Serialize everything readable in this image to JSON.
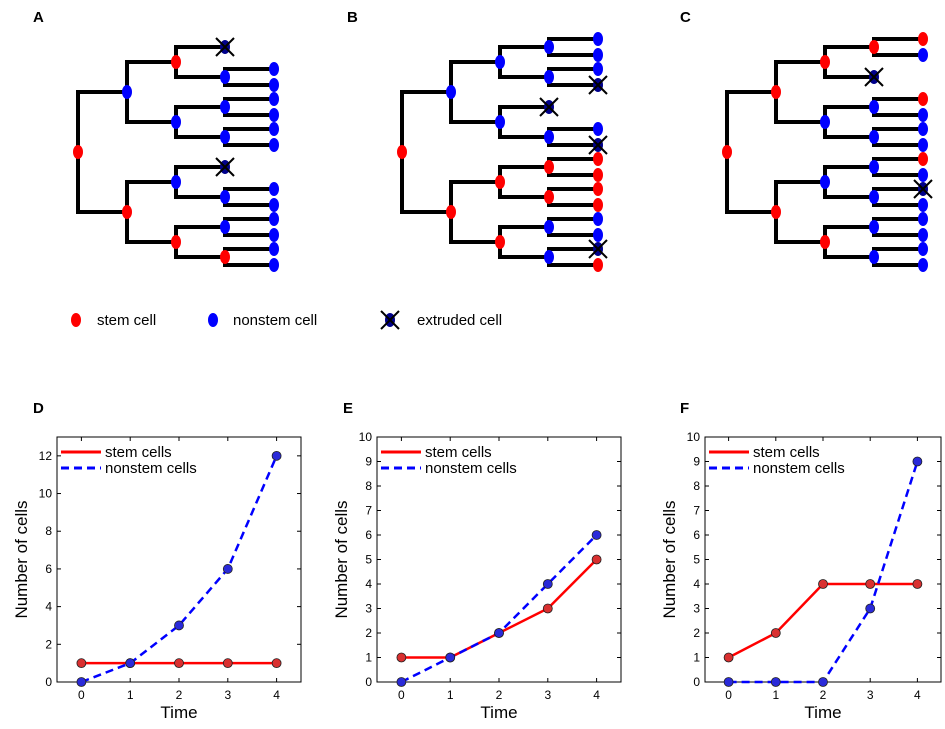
{
  "panel_labels": [
    "A",
    "B",
    "C",
    "D",
    "E",
    "F"
  ],
  "legend": {
    "stem": "stem cell",
    "nonstem": "nonstem cell",
    "extruded": "extruded cell"
  },
  "colors": {
    "stem": "#ff0000",
    "nonstem": "#0000ff",
    "extruded": "#00008b",
    "line": "#000000"
  },
  "trees": [
    {
      "root": "S",
      "l1": [
        "N",
        "S"
      ],
      "l2": [
        "S",
        "N",
        "N",
        "S"
      ],
      "l3": [
        "X",
        "N",
        "N",
        "N",
        "X",
        "N",
        "N",
        "S"
      ],
      "leaves": [
        "N",
        "N",
        "N",
        "N",
        "N",
        "N",
        "N",
        "N",
        "N",
        "N",
        "N",
        "N",
        "N",
        "S"
      ]
    },
    {
      "root": "S",
      "l1": [
        "N",
        "S"
      ],
      "l2": [
        "N",
        "N",
        "S",
        "S"
      ],
      "l3": [
        "N",
        "N",
        "X",
        "N",
        "S",
        "S",
        "N",
        "N"
      ],
      "leaves": [
        "N",
        "N",
        "N",
        "X",
        "N",
        "X",
        "S",
        "S",
        "S",
        "S",
        "N",
        "N",
        "X",
        "S"
      ]
    },
    {
      "root": "S",
      "l1": [
        "S",
        "S"
      ],
      "l2": [
        "S",
        "N",
        "N",
        "S"
      ],
      "l3": [
        "S",
        "X",
        "N",
        "N",
        "N",
        "N",
        "N",
        "N"
      ],
      "leaves": [
        "S",
        "N",
        "S",
        "N",
        "N",
        "N",
        "S",
        "N",
        "X",
        "N",
        "N",
        "N",
        "N",
        "N"
      ]
    }
  ],
  "charts_common": {
    "xlabel": "Time",
    "ylabel": "Number of cells",
    "legend_stem": "stem cells",
    "legend_nonstem": "nonstem cells"
  },
  "chart_data": [
    {
      "type": "line",
      "panel": "D",
      "x": [
        0,
        1,
        2,
        3,
        4
      ],
      "xlim": [
        -0.5,
        4.5
      ],
      "ylim": [
        0,
        13
      ],
      "yticks": [
        0,
        2,
        4,
        6,
        8,
        10,
        12
      ],
      "xticks": [
        0,
        1,
        2,
        3,
        4
      ],
      "legend_placement": "top-left",
      "series": [
        {
          "name": "stem cells",
          "values": [
            1,
            1,
            1,
            1,
            1
          ],
          "color": "#ff0000",
          "dash": "solid"
        },
        {
          "name": "nonstem cells",
          "values": [
            0,
            1,
            3,
            6,
            12
          ],
          "color": "#0000ff",
          "dash": "dashed"
        }
      ]
    },
    {
      "type": "line",
      "panel": "E",
      "x": [
        0,
        1,
        2,
        3,
        4
      ],
      "xlim": [
        -0.5,
        4.5
      ],
      "ylim": [
        0,
        10
      ],
      "yticks": [
        0,
        1,
        2,
        3,
        4,
        5,
        6,
        7,
        8,
        9,
        10
      ],
      "xticks": [
        0,
        1,
        2,
        3,
        4
      ],
      "legend_placement": "top-left",
      "series": [
        {
          "name": "stem cells",
          "values": [
            1,
            1,
            2,
            3,
            5
          ],
          "color": "#ff0000",
          "dash": "solid"
        },
        {
          "name": "nonstem cells",
          "values": [
            0,
            1,
            2,
            4,
            6
          ],
          "color": "#0000ff",
          "dash": "dashed"
        }
      ]
    },
    {
      "type": "line",
      "panel": "F",
      "x": [
        0,
        1,
        2,
        3,
        4
      ],
      "xlim": [
        -0.5,
        4.5
      ],
      "ylim": [
        0,
        10
      ],
      "yticks": [
        0,
        1,
        2,
        3,
        4,
        5,
        6,
        7,
        8,
        9,
        10
      ],
      "xticks": [
        0,
        1,
        2,
        3,
        4
      ],
      "legend_placement": "top-left",
      "series": [
        {
          "name": "stem cells",
          "values": [
            1,
            2,
            4,
            4,
            4
          ],
          "color": "#ff0000",
          "dash": "solid"
        },
        {
          "name": "nonstem cells",
          "values": [
            0,
            0,
            0,
            3,
            9
          ],
          "color": "#0000ff",
          "dash": "dashed"
        }
      ]
    }
  ]
}
